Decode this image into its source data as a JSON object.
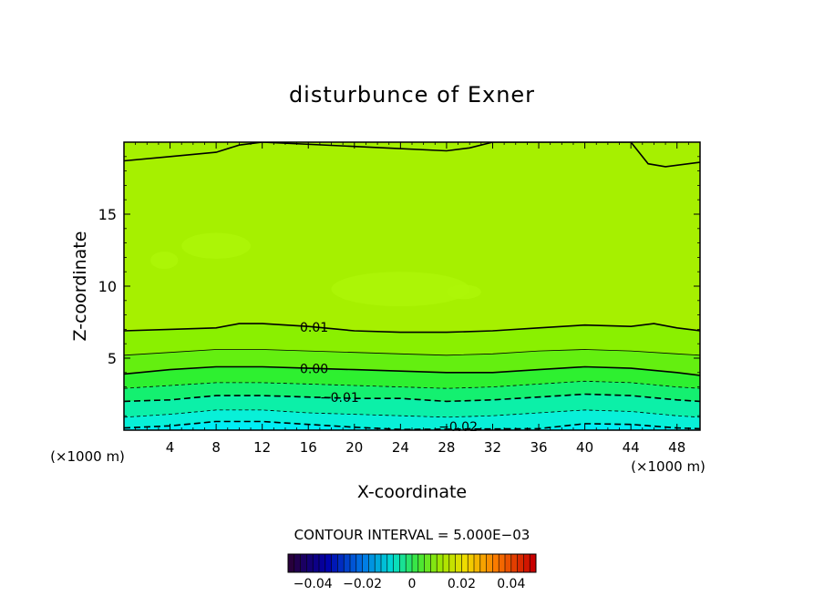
{
  "chart_data": {
    "type": "contour",
    "title": "disturbunce of Exner",
    "xlabel": "X-coordinate",
    "ylabel": "Z-coordinate",
    "x_unit_label": "(×1000 m)",
    "z_unit_label": "(×1000 m)",
    "xlim": [
      0,
      50
    ],
    "zlim": [
      0,
      20
    ],
    "x_ticks": [
      4,
      8,
      12,
      16,
      20,
      24,
      28,
      32,
      36,
      40,
      44,
      48
    ],
    "z_ticks": [
      5,
      10,
      15
    ],
    "contour_interval_text": "CONTOUR INTERVAL = 5.000E−03",
    "contour_interval": 0.005,
    "contours": [
      {
        "level": 0.015,
        "style": "solid",
        "label": "",
        "points": [
          [
            0,
            18.7
          ],
          [
            4,
            19
          ],
          [
            8,
            19.3
          ],
          [
            10,
            19.8
          ],
          [
            12,
            20
          ],
          [
            20,
            19.7
          ],
          [
            28,
            19.4
          ],
          [
            30,
            19.6
          ],
          [
            32,
            20
          ],
          [
            44,
            20
          ],
          [
            45.5,
            18.5
          ],
          [
            47,
            18.3
          ],
          [
            50,
            18.6
          ]
        ]
      },
      {
        "level": 0.01,
        "style": "solid",
        "label": "0.01",
        "label_at": [
          16.5,
          7.1
        ],
        "points": [
          [
            0,
            6.9
          ],
          [
            4,
            7.0
          ],
          [
            8,
            7.1
          ],
          [
            10,
            7.4
          ],
          [
            12,
            7.4
          ],
          [
            16,
            7.2
          ],
          [
            20,
            6.9
          ],
          [
            24,
            6.8
          ],
          [
            28,
            6.8
          ],
          [
            32,
            6.9
          ],
          [
            36,
            7.1
          ],
          [
            40,
            7.3
          ],
          [
            44,
            7.2
          ],
          [
            46,
            7.4
          ],
          [
            48,
            7.1
          ],
          [
            50,
            6.9
          ]
        ]
      },
      {
        "level": 0.005,
        "style": "solid",
        "label": "",
        "points": [
          [
            0,
            5.2
          ],
          [
            4,
            5.4
          ],
          [
            8,
            5.6
          ],
          [
            12,
            5.6
          ],
          [
            16,
            5.5
          ],
          [
            20,
            5.4
          ],
          [
            24,
            5.3
          ],
          [
            28,
            5.2
          ],
          [
            32,
            5.3
          ],
          [
            36,
            5.5
          ],
          [
            40,
            5.6
          ],
          [
            44,
            5.5
          ],
          [
            48,
            5.3
          ],
          [
            50,
            5.2
          ]
        ]
      },
      {
        "level": 0.0,
        "style": "solid",
        "label": "0.00",
        "label_at": [
          16.5,
          4.2
        ],
        "points": [
          [
            0,
            3.9
          ],
          [
            4,
            4.2
          ],
          [
            8,
            4.4
          ],
          [
            12,
            4.4
          ],
          [
            16,
            4.3
          ],
          [
            20,
            4.2
          ],
          [
            24,
            4.1
          ],
          [
            28,
            4.0
          ],
          [
            32,
            4.0
          ],
          [
            36,
            4.2
          ],
          [
            40,
            4.4
          ],
          [
            44,
            4.3
          ],
          [
            48,
            4.0
          ],
          [
            50,
            3.8
          ]
        ]
      },
      {
        "level": -0.005,
        "style": "dashed",
        "label": "",
        "points": [
          [
            0,
            2.9
          ],
          [
            4,
            3.1
          ],
          [
            8,
            3.3
          ],
          [
            12,
            3.3
          ],
          [
            16,
            3.2
          ],
          [
            20,
            3.1
          ],
          [
            24,
            3.0
          ],
          [
            28,
            2.9
          ],
          [
            32,
            3.0
          ],
          [
            36,
            3.2
          ],
          [
            40,
            3.4
          ],
          [
            44,
            3.3
          ],
          [
            48,
            3.0
          ],
          [
            50,
            2.9
          ]
        ]
      },
      {
        "level": -0.01,
        "style": "dashed",
        "label": "−0.01",
        "label_at": [
          18.7,
          2.2
        ],
        "points": [
          [
            0,
            2.0
          ],
          [
            4,
            2.1
          ],
          [
            8,
            2.4
          ],
          [
            12,
            2.4
          ],
          [
            16,
            2.3
          ],
          [
            20,
            2.2
          ],
          [
            24,
            2.2
          ],
          [
            28,
            2.0
          ],
          [
            32,
            2.1
          ],
          [
            36,
            2.3
          ],
          [
            40,
            2.5
          ],
          [
            44,
            2.4
          ],
          [
            48,
            2.1
          ],
          [
            50,
            2.0
          ]
        ]
      },
      {
        "level": -0.015,
        "style": "dashed",
        "label": "",
        "points": [
          [
            0,
            0.9
          ],
          [
            4,
            1.1
          ],
          [
            8,
            1.4
          ],
          [
            12,
            1.4
          ],
          [
            16,
            1.2
          ],
          [
            20,
            1.1
          ],
          [
            24,
            1.0
          ],
          [
            28,
            0.9
          ],
          [
            32,
            1.0
          ],
          [
            36,
            1.2
          ],
          [
            40,
            1.4
          ],
          [
            44,
            1.3
          ],
          [
            48,
            1.0
          ],
          [
            50,
            0.9
          ]
        ]
      },
      {
        "level": -0.02,
        "style": "dashed",
        "label": "−0.02",
        "label_at": [
          29,
          0.2
        ],
        "points": [
          [
            0,
            0.15
          ],
          [
            4,
            0.3
          ],
          [
            8,
            0.6
          ],
          [
            12,
            0.6
          ],
          [
            16,
            0.4
          ],
          [
            20,
            0.2
          ],
          [
            24,
            0.05
          ],
          [
            36,
            0.1
          ],
          [
            40,
            0.45
          ],
          [
            44,
            0.4
          ],
          [
            48,
            0.15
          ],
          [
            50,
            0.1
          ]
        ]
      }
    ],
    "colorbar": {
      "tick_labels": [
        "−0.04",
        "−0.02",
        "0",
        "0.02",
        "0.04"
      ],
      "range": [
        -0.05,
        0.05
      ]
    },
    "fill_colors": {
      "top_layer": "#a6f000",
      "band_0p01": "#8af000",
      "band_0p005": "#64ef10",
      "band_0p000": "#2ef030",
      "band_m0p005": "#14f070",
      "band_m0p010": "#0cf0a8",
      "band_m0p015": "#08f0d8",
      "band_m0p020": "#00eef4",
      "patch_light": "#aef608"
    }
  }
}
